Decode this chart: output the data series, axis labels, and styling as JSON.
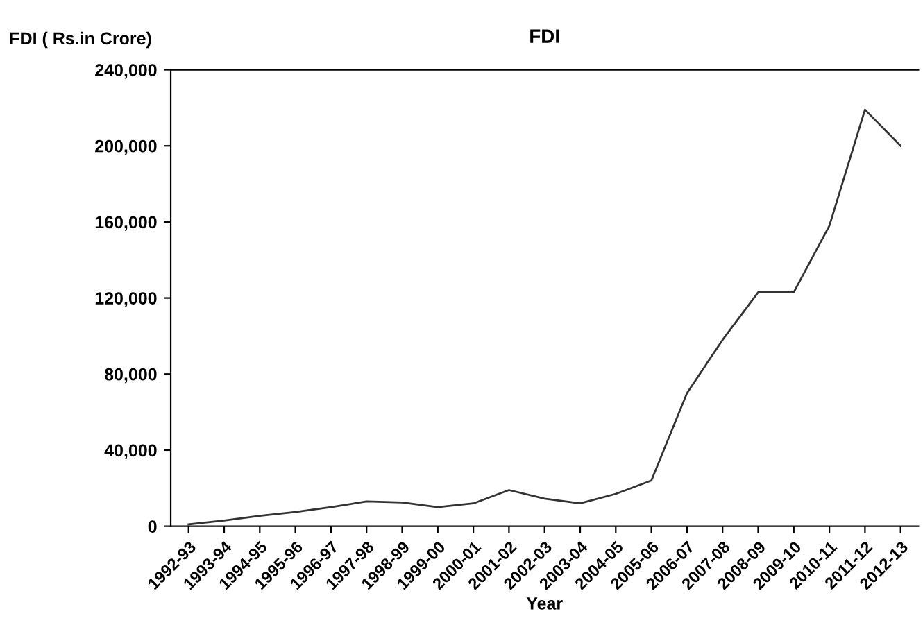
{
  "chart_data": {
    "type": "line",
    "title": "FDI",
    "ylabel": "FDI ( Rs.in Crore)",
    "xlabel": "Year",
    "categories": [
      "1992-93",
      "1993-94",
      "1994-95",
      "1995-96",
      "1996-97",
      "1997-98",
      "1998-99",
      "1999-00",
      "2000-01",
      "2001-02",
      "2002-03",
      "2003-04",
      "2004-05",
      "2005-06",
      "2006-07",
      "2007-08",
      "2008-09",
      "2009-10",
      "2010-11",
      "2011-12",
      "2012-13"
    ],
    "series": [
      {
        "color": "#333333",
        "values": [
          1000,
          3000,
          5500,
          7500,
          10000,
          13000,
          12500,
          10000,
          12000,
          19000,
          14500,
          12000,
          17000,
          24000,
          70000,
          98000,
          123000,
          123000,
          158000,
          219000,
          200000
        ]
      }
    ],
    "ylim": [
      0,
      240000
    ],
    "yticks": [
      {
        "value": 0,
        "label": "0"
      },
      {
        "value": 40000,
        "label": "40,000"
      },
      {
        "value": 80000,
        "label": "80,000"
      },
      {
        "value": 120000,
        "label": "120,000"
      },
      {
        "value": 160000,
        "label": "160,000"
      },
      {
        "value": 200000,
        "label": "200,000"
      },
      {
        "value": 240000,
        "label": "240,000"
      }
    ],
    "grid": false,
    "legend": false,
    "marker": "none",
    "line_style": "solid"
  }
}
